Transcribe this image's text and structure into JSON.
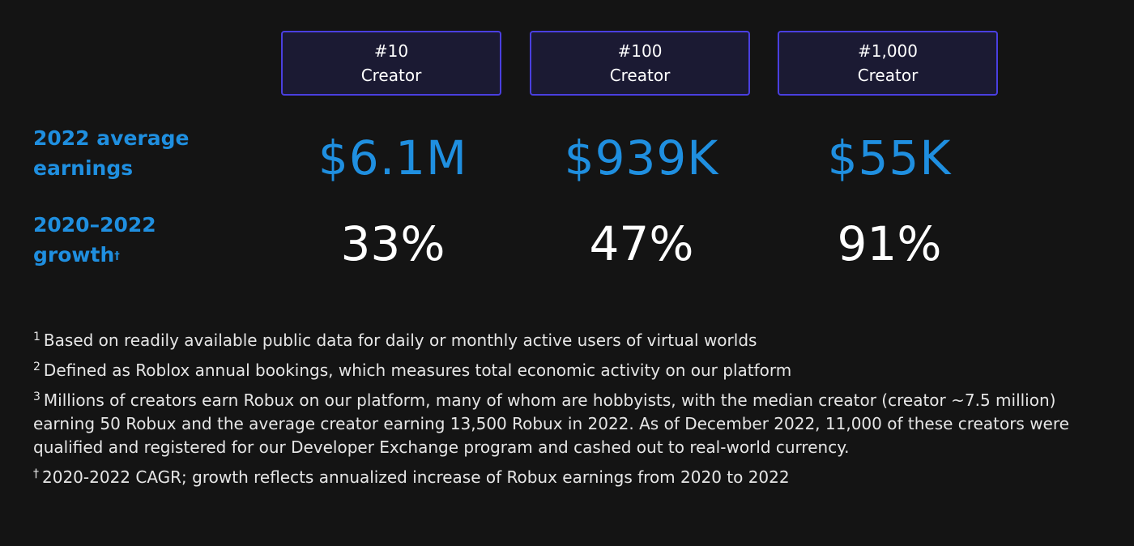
{
  "columns": [
    {
      "rank": "#10",
      "label": "Creator",
      "earnings": "$6.1M",
      "growth": "33%"
    },
    {
      "rank": "#100",
      "label": "Creator",
      "earnings": "$939K",
      "growth": "47%"
    },
    {
      "rank": "#1,000",
      "label": "Creator",
      "earnings": "$55K",
      "growth": "91%"
    }
  ],
  "rows": {
    "earnings": {
      "line1": "2022 average",
      "line2": "earnings"
    },
    "growth": {
      "line1": "2020–2022",
      "line2": "growth",
      "mark": "†"
    }
  },
  "footnotes": [
    {
      "mark": "1",
      "text": "Based on readily available public data for daily or monthly active users of virtual worlds"
    },
    {
      "mark": "2",
      "text": "Defined as Roblox annual bookings, which measures total economic activity on our platform"
    },
    {
      "mark": "3",
      "text": "Millions of creators earn Robux on our platform, many of whom are hobbyists, with the median creator (creator ~7.5 million) earning 50 Robux and the average creator earning 13,500 Robux in 2022. As of December 2022, 11,000 of these creators were qualified and registered for our Developer Exchange program and cashed out to real-world currency."
    },
    {
      "mark": "†",
      "text": "2020-2022 CAGR; growth reflects annualized increase of Robux earnings from 2020 to 2022"
    }
  ],
  "colors": {
    "background": "#141414",
    "accent_blue": "#1f8fe0",
    "box_border": "#4a3fe0",
    "box_fill": "#1b1a33"
  }
}
